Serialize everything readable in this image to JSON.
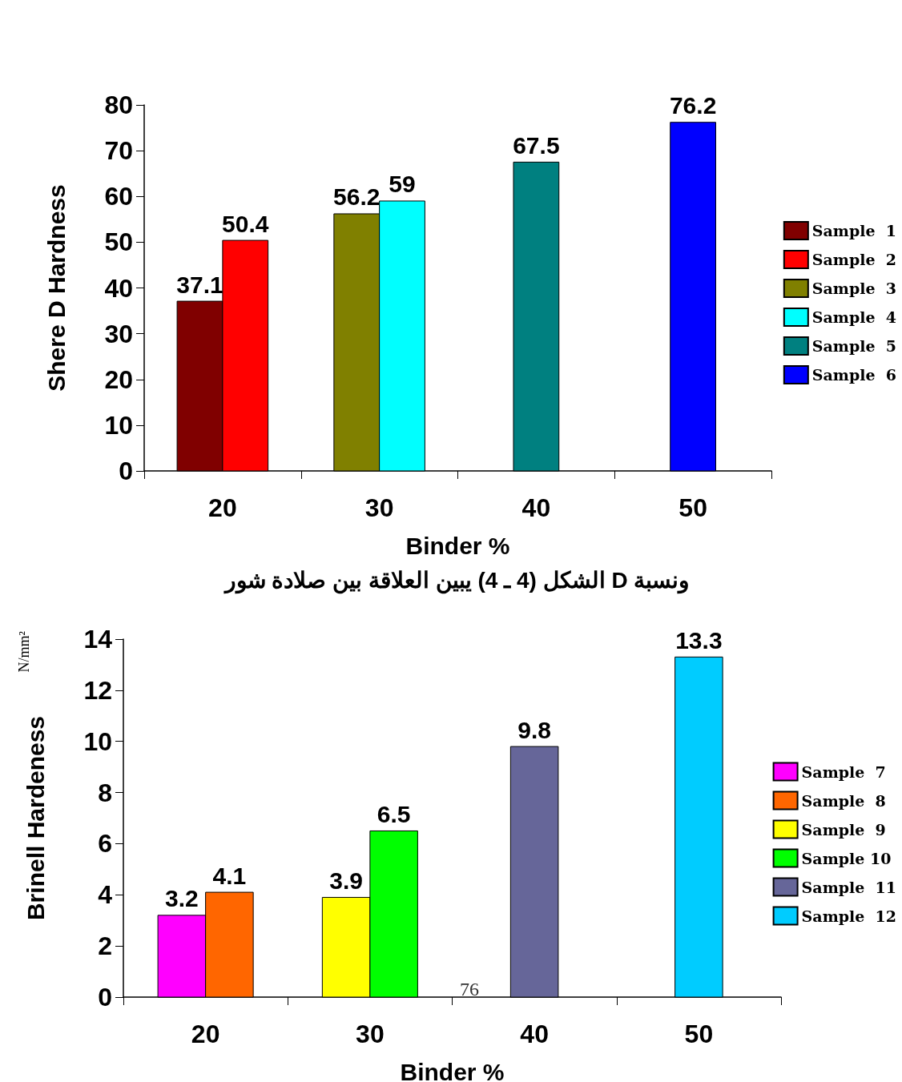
{
  "chart_data": [
    {
      "type": "bar",
      "ylabel": "Shere D Hardness",
      "xlabel": "Binder %",
      "categories": [
        "20",
        "30",
        "40",
        "50"
      ],
      "ylim": [
        0,
        80
      ],
      "yticks": [
        0,
        10,
        20,
        30,
        40,
        50,
        60,
        70,
        80
      ],
      "data_labels": true,
      "legend": "right",
      "annotations": [
        "الشكل (4 ـ 4) يبين العلاقة بين صلادة شور D ونسبة"
      ],
      "series": [
        {
          "name": "Sample  1",
          "color": "#800000",
          "values": [
            37.1,
            null,
            null,
            null
          ]
        },
        {
          "name": "Sample  2",
          "color": "#ff0000",
          "values": [
            50.4,
            null,
            null,
            null
          ]
        },
        {
          "name": "Sample  3",
          "color": "#808000",
          "values": [
            null,
            56.2,
            null,
            null
          ]
        },
        {
          "name": "Sample  4",
          "color": "#00ffff",
          "values": [
            null,
            59,
            null,
            null
          ]
        },
        {
          "name": "Sample  5",
          "color": "#008080",
          "values": [
            null,
            null,
            67.5,
            null
          ]
        },
        {
          "name": "Sample  6",
          "color": "#0000ff",
          "values": [
            null,
            null,
            null,
            76.2
          ]
        }
      ]
    },
    {
      "type": "bar",
      "ylabel": "Brinell Hardeness",
      "xlabel": "Binder %",
      "categories": [
        "20",
        "30",
        "40",
        "50"
      ],
      "ylim": [
        0,
        14
      ],
      "yticks": [
        0,
        2,
        4,
        6,
        8,
        10,
        12,
        14
      ],
      "data_labels": true,
      "legend": "right",
      "annotations": [
        "N/mm²",
        "76"
      ],
      "series": [
        {
          "name": "Sample  7",
          "color": "#ff00ff",
          "values": [
            3.2,
            null,
            null,
            null
          ]
        },
        {
          "name": "Sample  8",
          "color": "#ff6600",
          "values": [
            4.1,
            null,
            null,
            null
          ]
        },
        {
          "name": "Sample  9",
          "color": "#ffff00",
          "values": [
            null,
            3.9,
            null,
            null
          ]
        },
        {
          "name": "Sample 10",
          "color": "#00ff00",
          "values": [
            null,
            6.5,
            null,
            null
          ]
        },
        {
          "name": "Sample  11",
          "color": "#666699",
          "values": [
            null,
            null,
            9.8,
            null
          ]
        },
        {
          "name": "Sample  12",
          "color": "#00ccff",
          "values": [
            null,
            null,
            null,
            13.3
          ]
        }
      ]
    }
  ]
}
